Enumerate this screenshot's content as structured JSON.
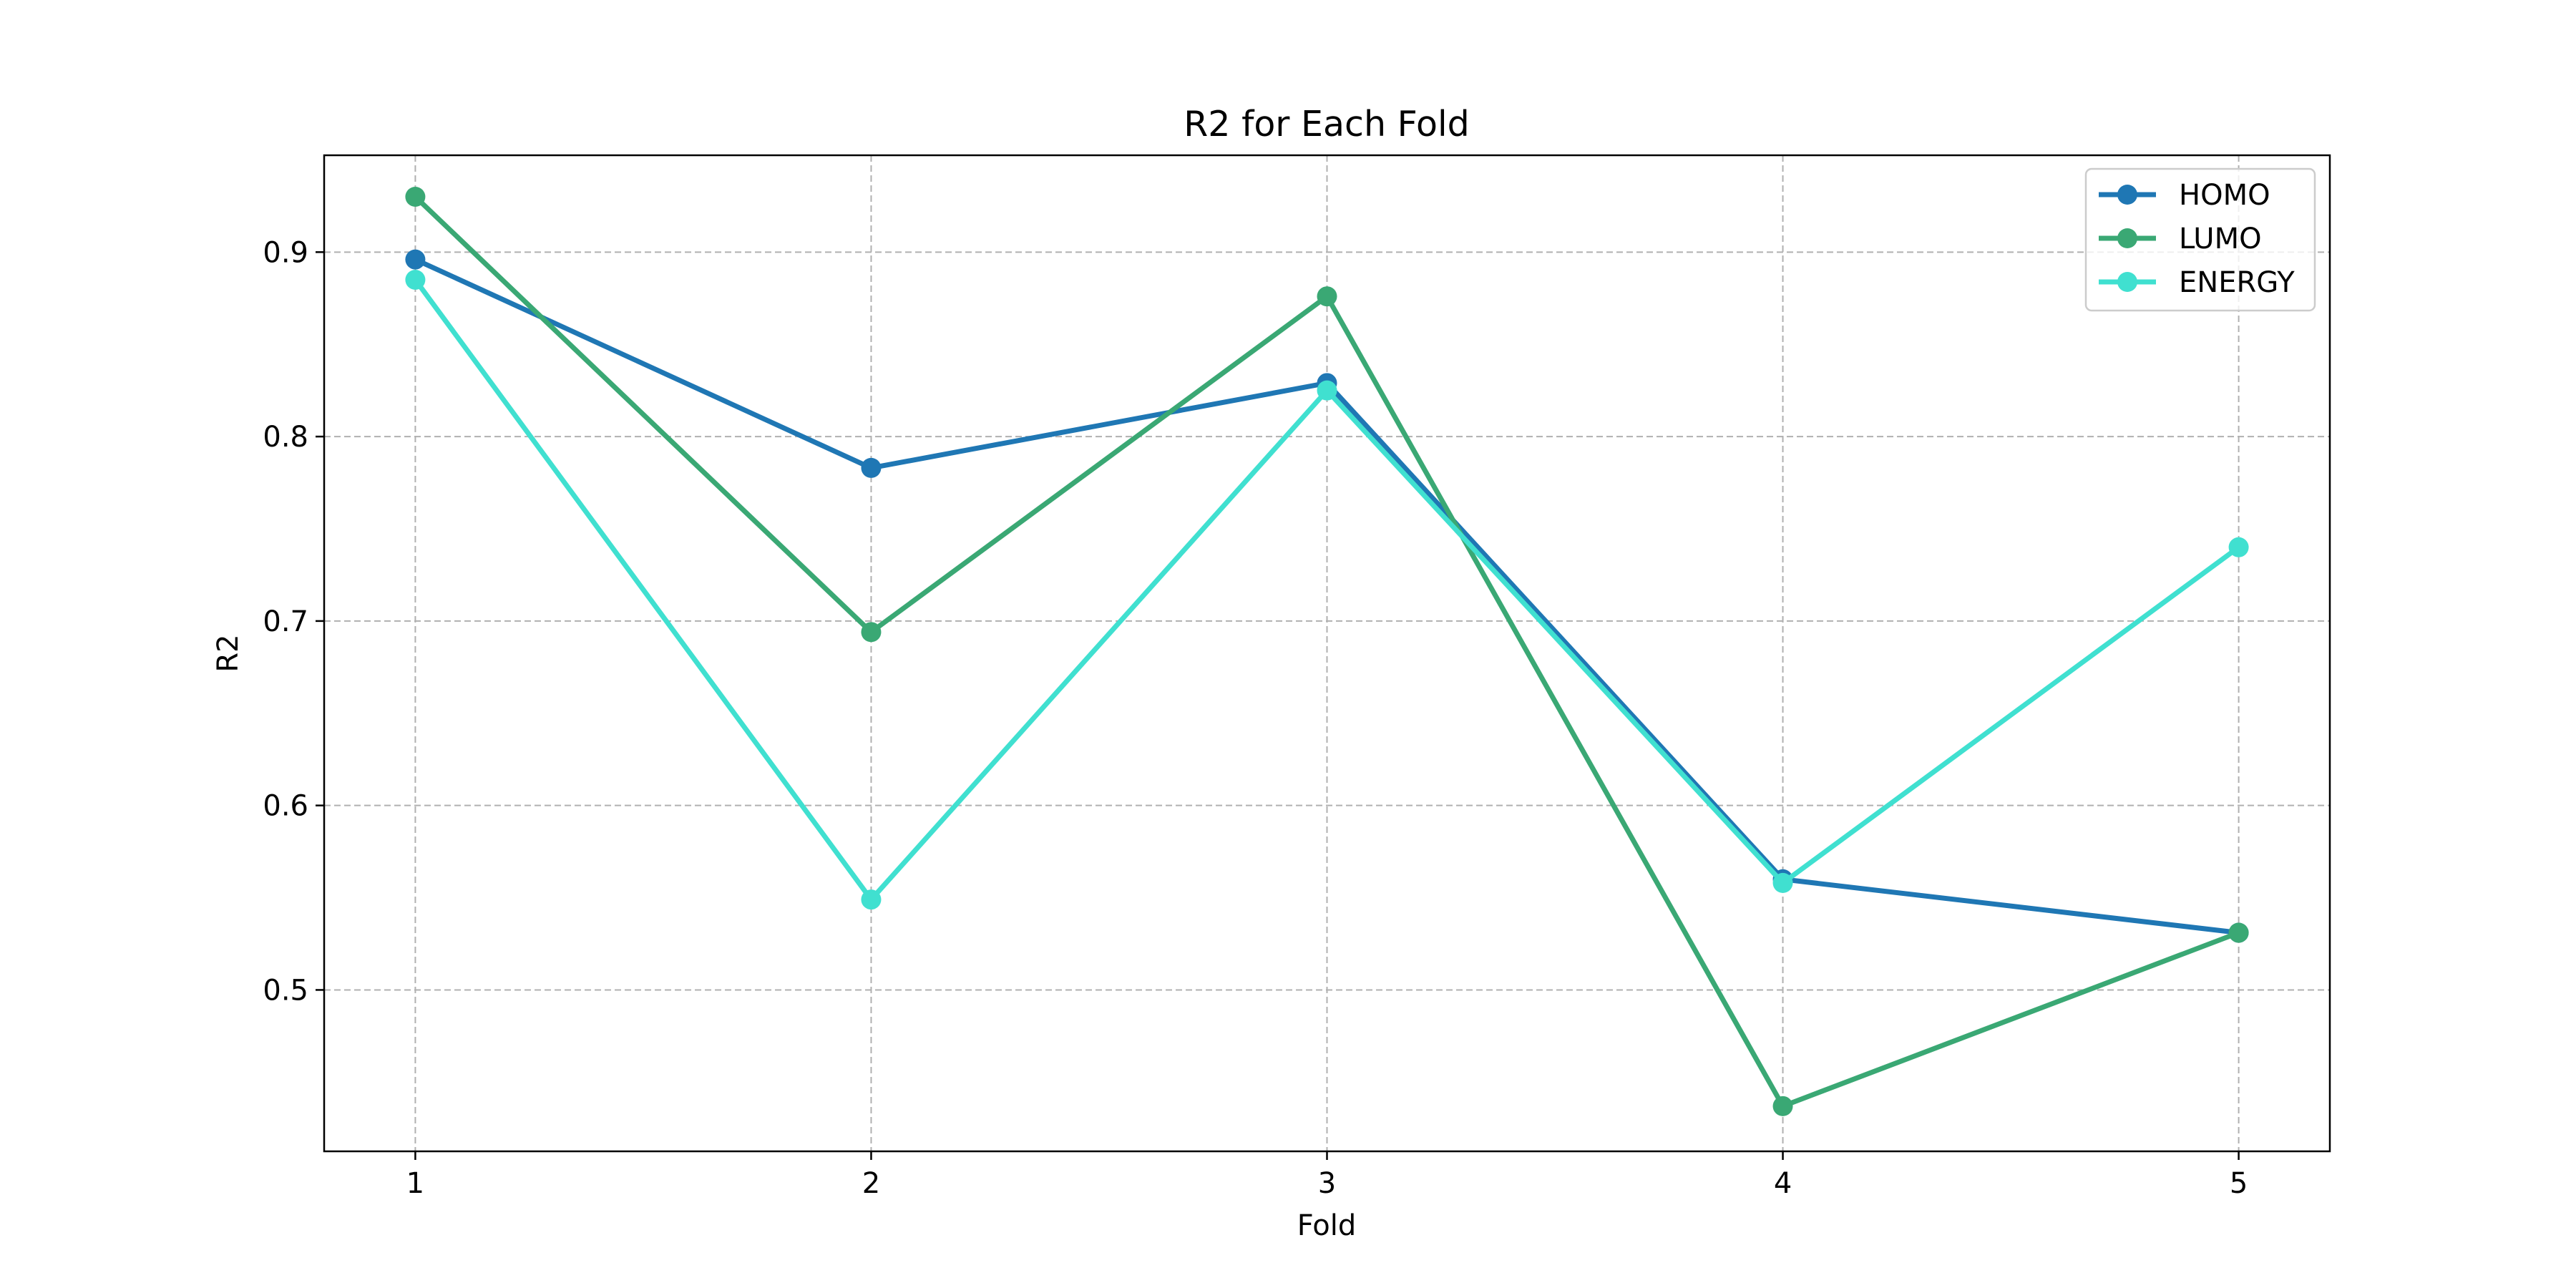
{
  "chart_data": {
    "type": "line",
    "title": "R2 for Each Fold",
    "xlabel": "Fold",
    "ylabel": "R2",
    "x": [
      1,
      2,
      3,
      4,
      5
    ],
    "x_ticks": [
      "1",
      "2",
      "3",
      "4",
      "5"
    ],
    "xlim": [
      0.8,
      5.2
    ],
    "ylim": [
      0.4125,
      0.9525
    ],
    "y_ticks": [
      0.5,
      0.6,
      0.7,
      0.8,
      0.9
    ],
    "y_tick_labels": [
      "0.5",
      "0.6",
      "0.7",
      "0.8",
      "0.9"
    ],
    "grid": true,
    "legend_position": "top-right",
    "series": [
      {
        "name": "HOMO",
        "color": "#1f77b4",
        "values": [
          0.896,
          0.783,
          0.829,
          0.56,
          0.531
        ]
      },
      {
        "name": "LUMO",
        "color": "#3aa874",
        "values": [
          0.93,
          0.694,
          0.876,
          0.437,
          0.531
        ]
      },
      {
        "name": "ENERGY",
        "color": "#40e0d0",
        "values": [
          0.885,
          0.549,
          0.825,
          0.558,
          0.74
        ]
      }
    ]
  }
}
